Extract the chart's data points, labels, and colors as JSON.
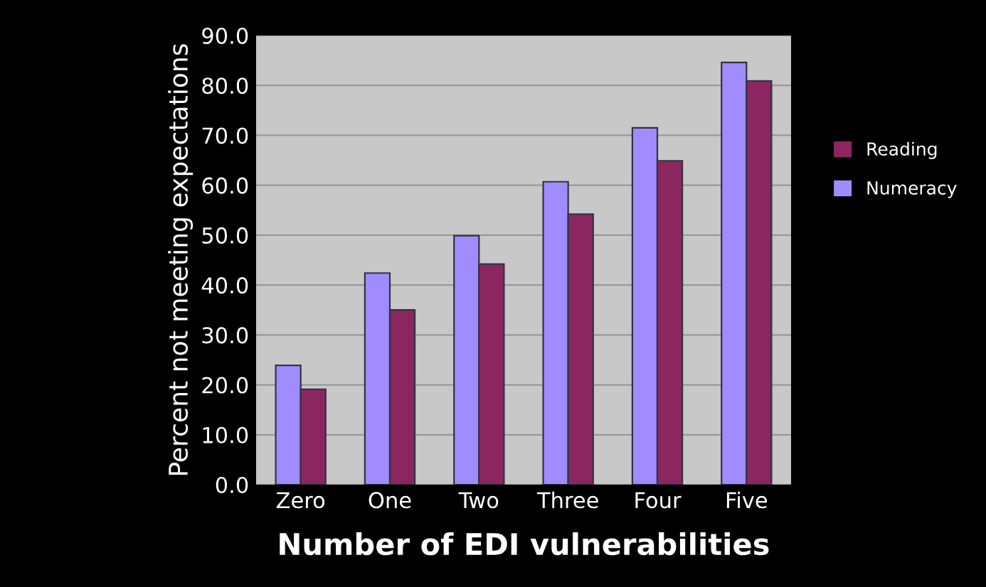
{
  "chart_data": {
    "type": "bar",
    "xlabel": "Number of EDI vulnerabilities",
    "ylabel": "Percent not meeting expectations",
    "categories": [
      "Zero",
      "One",
      "Two",
      "Three",
      "Four",
      "Five"
    ],
    "series": [
      {
        "name": "Numeracy",
        "color": "#a08cff",
        "values": [
          23.9,
          42.4,
          49.9,
          60.7,
          71.5,
          84.6
        ]
      },
      {
        "name": "Reading",
        "color": "#8b2660",
        "values": [
          19.1,
          35.0,
          44.2,
          54.2,
          64.9,
          80.9
        ]
      }
    ],
    "ylim": [
      0,
      90
    ],
    "yticks": [
      {
        "value": 0,
        "label": "0.0"
      },
      {
        "value": 10,
        "label": "10.0"
      },
      {
        "value": 20,
        "label": "20.0"
      },
      {
        "value": 30,
        "label": "30.0"
      },
      {
        "value": 40,
        "label": "40.0"
      },
      {
        "value": 50,
        "label": "50.0"
      },
      {
        "value": 60,
        "label": "60.0"
      },
      {
        "value": 70,
        "label": "70.0"
      },
      {
        "value": 80,
        "label": "80.0"
      },
      {
        "value": 90,
        "label": "90.0"
      }
    ],
    "grid": "y",
    "legend": "right"
  }
}
